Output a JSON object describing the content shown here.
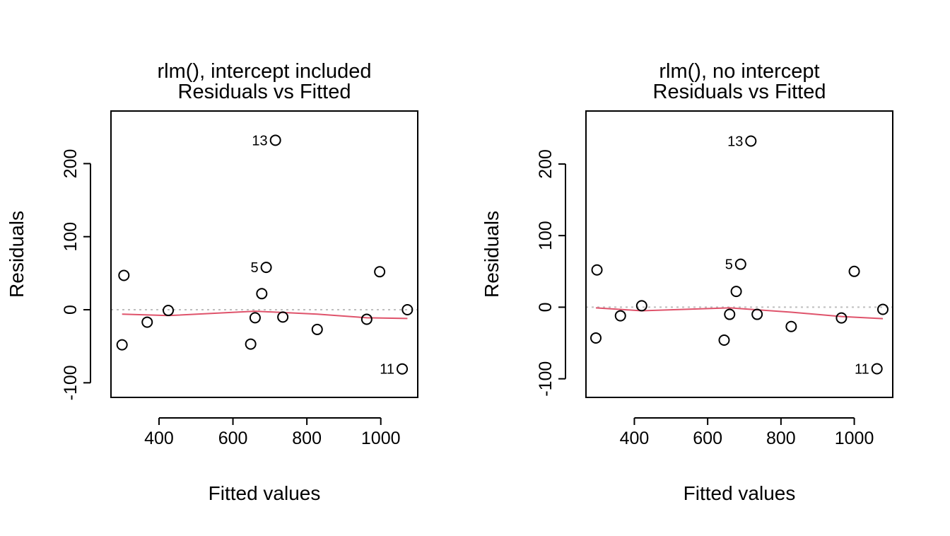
{
  "chart_data": [
    {
      "type": "scatter",
      "title": [
        "rlm(), intercept included",
        "Residuals vs Fitted"
      ],
      "xlabel": "Fitted values",
      "ylabel": "Residuals",
      "xlim": [
        270,
        1100
      ],
      "ylim": [
        -120,
        272
      ],
      "xticks": [
        400,
        600,
        800,
        1000
      ],
      "yticks": [
        -100,
        0,
        100,
        200
      ],
      "grid": false,
      "reference_line": 0,
      "colors": {
        "points": "#000000",
        "smooth": "#DF536B",
        "reference": "#BEBEBE"
      },
      "points": [
        {
          "x": 300,
          "y": -48
        },
        {
          "x": 305,
          "y": 47
        },
        {
          "x": 368,
          "y": -17
        },
        {
          "x": 425,
          "y": -1
        },
        {
          "x": 648,
          "y": -47
        },
        {
          "x": 660,
          "y": -11
        },
        {
          "x": 678,
          "y": 22
        },
        {
          "x": 690,
          "y": 58,
          "label": "5"
        },
        {
          "x": 715,
          "y": 232,
          "label": "13"
        },
        {
          "x": 735,
          "y": -10
        },
        {
          "x": 828,
          "y": -27
        },
        {
          "x": 962,
          "y": -13
        },
        {
          "x": 997,
          "y": 52
        },
        {
          "x": 1058,
          "y": -81,
          "label": "11"
        },
        {
          "x": 1072,
          "y": 0
        }
      ],
      "smooth": [
        {
          "x": 300,
          "y": -6
        },
        {
          "x": 425,
          "y": -8
        },
        {
          "x": 660,
          "y": -2
        },
        {
          "x": 828,
          "y": -6
        },
        {
          "x": 962,
          "y": -11
        },
        {
          "x": 1072,
          "y": -12
        }
      ]
    },
    {
      "type": "scatter",
      "title": [
        "rlm(), no intercept",
        "Residuals vs Fitted"
      ],
      "xlabel": "Fitted values",
      "ylabel": "Residuals",
      "xlim": [
        268,
        1105
      ],
      "ylim": [
        -126,
        274
      ],
      "xticks": [
        400,
        600,
        800,
        1000
      ],
      "yticks": [
        -100,
        0,
        100,
        200
      ],
      "grid": false,
      "reference_line": 0,
      "colors": {
        "points": "#000000",
        "smooth": "#DF536B",
        "reference": "#BEBEBE"
      },
      "points": [
        {
          "x": 295,
          "y": -43
        },
        {
          "x": 298,
          "y": 52
        },
        {
          "x": 362,
          "y": -12
        },
        {
          "x": 420,
          "y": 2
        },
        {
          "x": 645,
          "y": -46
        },
        {
          "x": 660,
          "y": -10
        },
        {
          "x": 678,
          "y": 22
        },
        {
          "x": 690,
          "y": 60,
          "label": "5"
        },
        {
          "x": 718,
          "y": 232,
          "label": "13"
        },
        {
          "x": 735,
          "y": -10
        },
        {
          "x": 828,
          "y": -27
        },
        {
          "x": 965,
          "y": -15
        },
        {
          "x": 1000,
          "y": 50
        },
        {
          "x": 1062,
          "y": -86,
          "label": "11"
        },
        {
          "x": 1078,
          "y": -3
        }
      ],
      "smooth": [
        {
          "x": 295,
          "y": -1
        },
        {
          "x": 420,
          "y": -5
        },
        {
          "x": 660,
          "y": -1
        },
        {
          "x": 828,
          "y": -7
        },
        {
          "x": 965,
          "y": -13
        },
        {
          "x": 1078,
          "y": -16
        }
      ]
    }
  ]
}
